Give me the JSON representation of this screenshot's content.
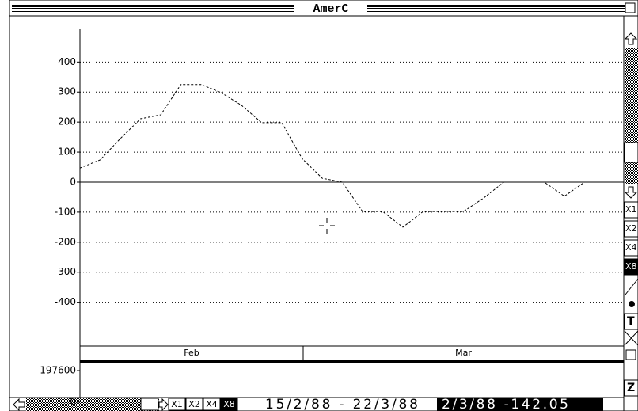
{
  "window": {
    "title": "AmerC"
  },
  "chart_data": {
    "type": "line",
    "categories": [
      null,
      null,
      null,
      null,
      null,
      null,
      null,
      null,
      null,
      null,
      null,
      null,
      null,
      null,
      null,
      null,
      null,
      null,
      null,
      null,
      null,
      null,
      null,
      null,
      null,
      null
    ],
    "series": [
      {
        "color": "#000000",
        "values": [
          47,
          74,
          145,
          211,
          224,
          325,
          325,
          298,
          256,
          198,
          198,
          79,
          13,
          0,
          -98,
          -98,
          -150,
          -98,
          -98,
          -98,
          -53,
          0,
          0,
          0,
          -47,
          0
        ]
      }
    ],
    "ylim": [
      -546,
      509
    ],
    "yticks": [
      -400,
      -300,
      -200,
      -100,
      0,
      100,
      200,
      300,
      400
    ],
    "grid": true,
    "months": [
      "Feb",
      "Mar"
    ],
    "volume_ylim": [
      0,
      247000
    ],
    "volume_ticks": [
      0,
      197600
    ]
  },
  "status": {
    "zoom_buttons": [
      "X1",
      "X2",
      "X4",
      "X8"
    ],
    "selected": 3,
    "range": "15/2/88 - 22/3/88",
    "readout": "2/3/88 -142.05"
  },
  "toolbar": {
    "zoom_buttons": [
      "X1",
      "X2",
      "X4",
      "X8"
    ],
    "selected": 3,
    "tools": [
      "T",
      "Z"
    ]
  }
}
